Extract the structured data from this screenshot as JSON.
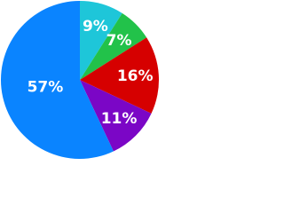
{
  "chart_data": {
    "type": "pie",
    "categories": [
      null,
      null,
      null,
      null,
      null
    ],
    "values": [
      9,
      7,
      16,
      11,
      57
    ],
    "value_labels": [
      "9%",
      "7%",
      "16%",
      "11%",
      "57%"
    ],
    "colors": [
      "#1ec6d9",
      "#22c24a",
      "#d60000",
      "#7b06c6",
      "#0a84ff"
    ]
  }
}
